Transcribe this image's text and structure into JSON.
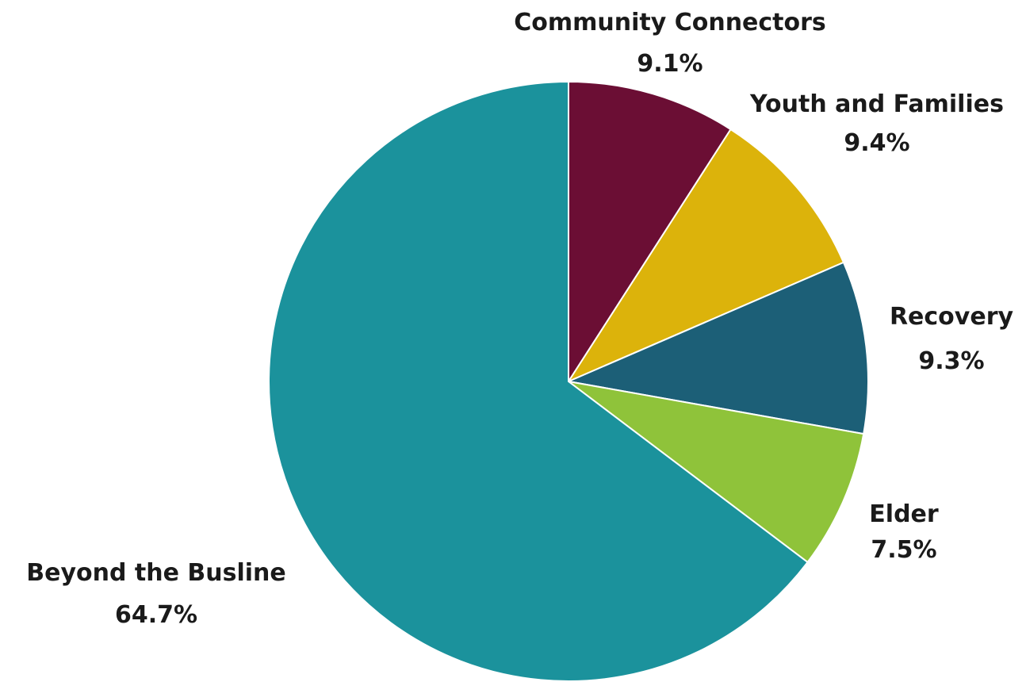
{
  "chart_data": {
    "type": "pie",
    "title": "",
    "start_angle_deg": 0,
    "direction": "clockwise",
    "slices": [
      {
        "label": "Community Connectors",
        "value": 9.1,
        "value_label": "9.1%",
        "color": "#6b0e34"
      },
      {
        "label": "Youth and Families",
        "value": 9.4,
        "value_label": "9.4%",
        "color": "#dcb30b"
      },
      {
        "label": "Recovery",
        "value": 9.3,
        "value_label": "9.3%",
        "color": "#1c5f77"
      },
      {
        "label": "Elder",
        "value": 7.5,
        "value_label": "7.5%",
        "color": "#8fc33a"
      },
      {
        "label": "Beyond the Busline",
        "value": 64.7,
        "value_label": "64.7%",
        "color": "#1b929c"
      }
    ]
  }
}
